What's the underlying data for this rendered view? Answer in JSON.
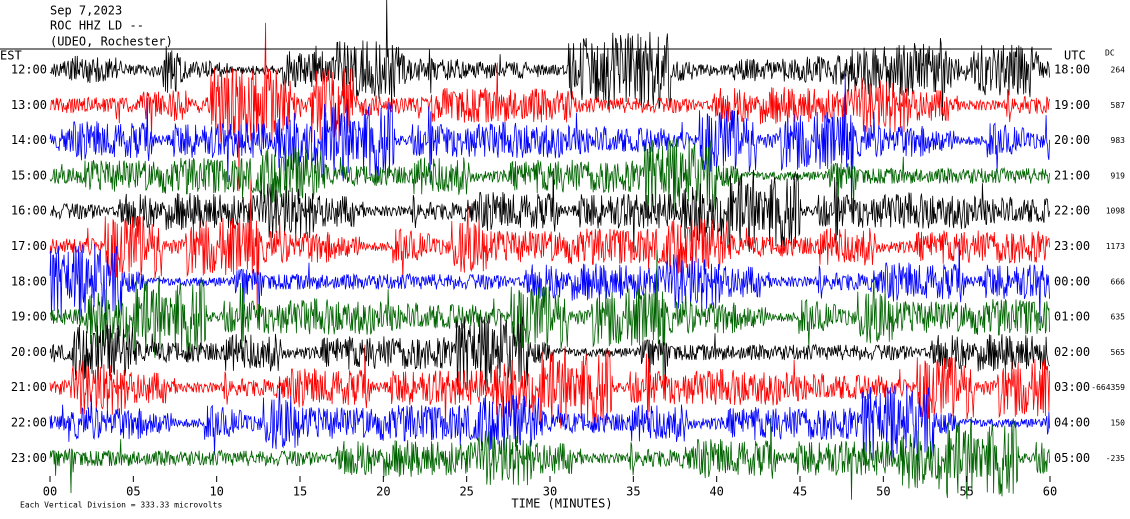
{
  "chart_data": {
    "type": "helicorder",
    "title_lines": [
      "Sep 7,2023",
      "ROC HHZ LD --",
      "(UDEO, Rochester)"
    ],
    "left_axis_label": "EST",
    "right_axis_label": "UTC",
    "dc_label": "DC",
    "x_label": "TIME (MINUTES)",
    "xlim": [
      0,
      60
    ],
    "xticks": [
      {
        "value": 0,
        "label": "00"
      },
      {
        "value": 5,
        "label": "05"
      },
      10,
      15,
      20,
      25,
      30,
      35,
      40,
      45,
      50,
      55,
      60
    ],
    "rows": [
      {
        "est": "12:00",
        "utc": "18:00",
        "dc": 264,
        "color": "#000000"
      },
      {
        "est": "13:00",
        "utc": "19:00",
        "dc": 587,
        "color": "#ff0000"
      },
      {
        "est": "14:00",
        "utc": "20:00",
        "dc": 983,
        "color": "#0000ff"
      },
      {
        "est": "15:00",
        "utc": "21:00",
        "dc": 919,
        "color": "#006400"
      },
      {
        "est": "16:00",
        "utc": "22:00",
        "dc": 1098,
        "color": "#000000"
      },
      {
        "est": "17:00",
        "utc": "23:00",
        "dc": 1173,
        "color": "#ff0000"
      },
      {
        "est": "18:00",
        "utc": "00:00",
        "dc": 666,
        "color": "#0000ff"
      },
      {
        "est": "19:00",
        "utc": "01:00",
        "dc": 635,
        "color": "#006400"
      },
      {
        "est": "20:00",
        "utc": "02:00",
        "dc": 565,
        "color": "#000000"
      },
      {
        "est": "21:00",
        "utc": "03:00",
        "dc": -664359,
        "color": "#ff0000"
      },
      {
        "est": "22:00",
        "utc": "04:00",
        "dc": 150,
        "color": "#0000ff"
      },
      {
        "est": "23:00",
        "utc": "05:00",
        "dc": -235,
        "color": "#006400"
      }
    ],
    "footer": "Each Vertical Division = 333.33 microvolts"
  }
}
